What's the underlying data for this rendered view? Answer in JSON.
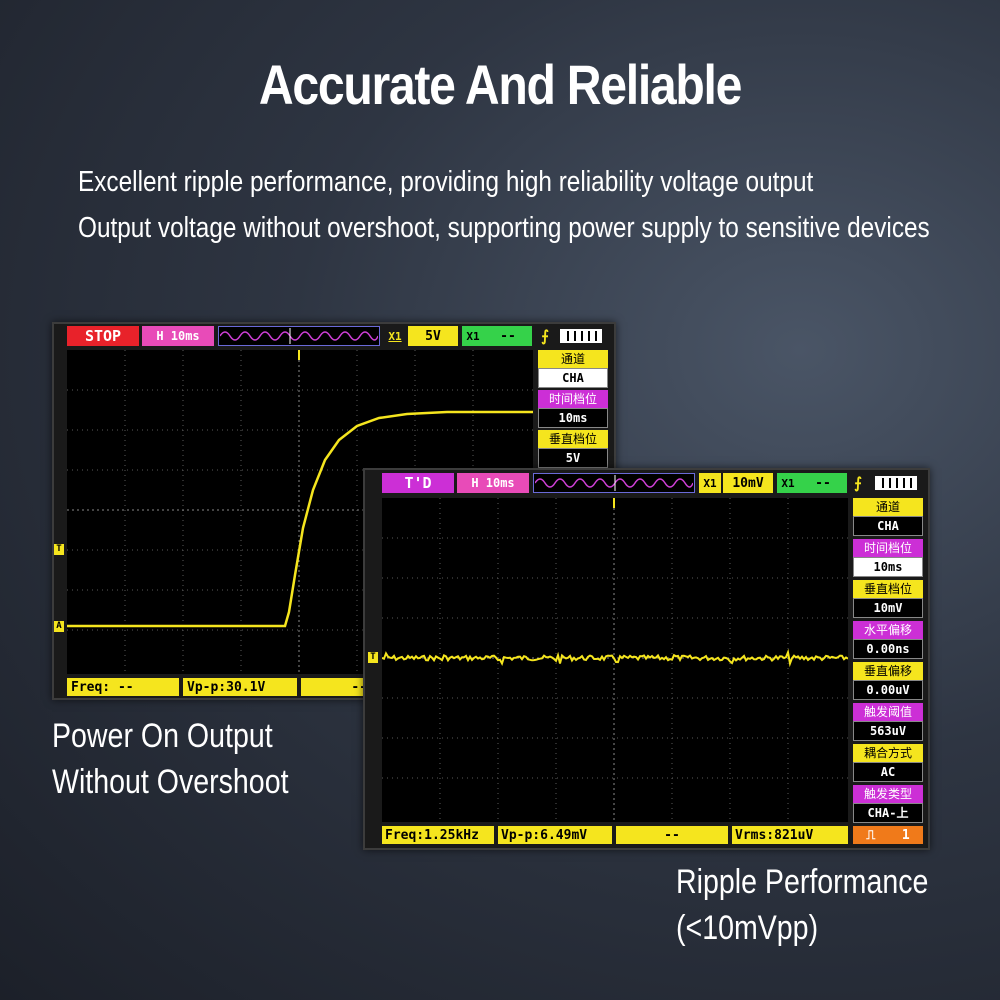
{
  "headline": "Accurate And Reliable",
  "subtitle_lines": [
    "Excellent ripple performance, providing high reliability voltage output",
    "Output voltage without overshoot, supporting power supply to sensitive devices"
  ],
  "caption_left": [
    "Power On Output",
    "Without Overshoot"
  ],
  "caption_right": [
    "Ripple Performance",
    "(<10mVpp)"
  ],
  "colors": {
    "accent_yellow": "#f5e51e",
    "stop_red": "#e8222a",
    "time_magenta": "#cc2fd6",
    "green": "#35d24a",
    "trace": "#f5e51e"
  },
  "scope_left": {
    "status": "STOP",
    "timebase": "H 10ms",
    "ch_icon": "X1",
    "volt_div": "5V",
    "ch2_icon": "X1",
    "ch2_value": "--",
    "trigger_icon": "trigger-edge-icon",
    "battery_icon": "battery-icon",
    "side_panel": [
      {
        "label": "通道",
        "value": "CHA",
        "style": "yellow"
      },
      {
        "label": "时间档位",
        "value": "10ms",
        "style": "magenta"
      },
      {
        "label": "垂直档位",
        "value": "5V",
        "style": "yellow"
      }
    ],
    "bottom": {
      "freq": "Freq: --",
      "vpp": "Vp-p:30.1V",
      "extra": "--"
    },
    "markers": {
      "trigger": "T",
      "ground": "A"
    }
  },
  "scope_right": {
    "status": "T'D",
    "timebase": "H 10ms",
    "ch_icon": "X1",
    "volt_div": "10mV",
    "ch2_icon": "X1",
    "ch2_value": "--",
    "trigger_icon": "trigger-edge-icon",
    "battery_icon": "battery-icon",
    "side_panel": [
      {
        "label": "通道",
        "value": "CHA",
        "style": "yellow"
      },
      {
        "label": "时间档位",
        "value": "10ms",
        "style": "magenta"
      },
      {
        "label": "垂直档位",
        "value": "10mV",
        "style": "yellow"
      },
      {
        "label": "水平偏移",
        "value": "0.00ns",
        "style": "magenta"
      },
      {
        "label": "垂直偏移",
        "value": "0.00uV",
        "style": "yellow"
      },
      {
        "label": "触发阈值",
        "value": "563uV",
        "style": "magenta"
      },
      {
        "label": "耦合方式",
        "value": "AC",
        "style": "yellow"
      },
      {
        "label": "触发类型",
        "value": "CHA-上",
        "style": "magenta"
      }
    ],
    "bottom": {
      "freq": "Freq:1.25kHz",
      "vpp": "Vp-p:6.49mV",
      "extra": "--",
      "vrms": "Vrms:821uV"
    },
    "mode_value": "1",
    "mode_icon": "square-wave-icon",
    "markers": {
      "trigger": "T"
    }
  }
}
